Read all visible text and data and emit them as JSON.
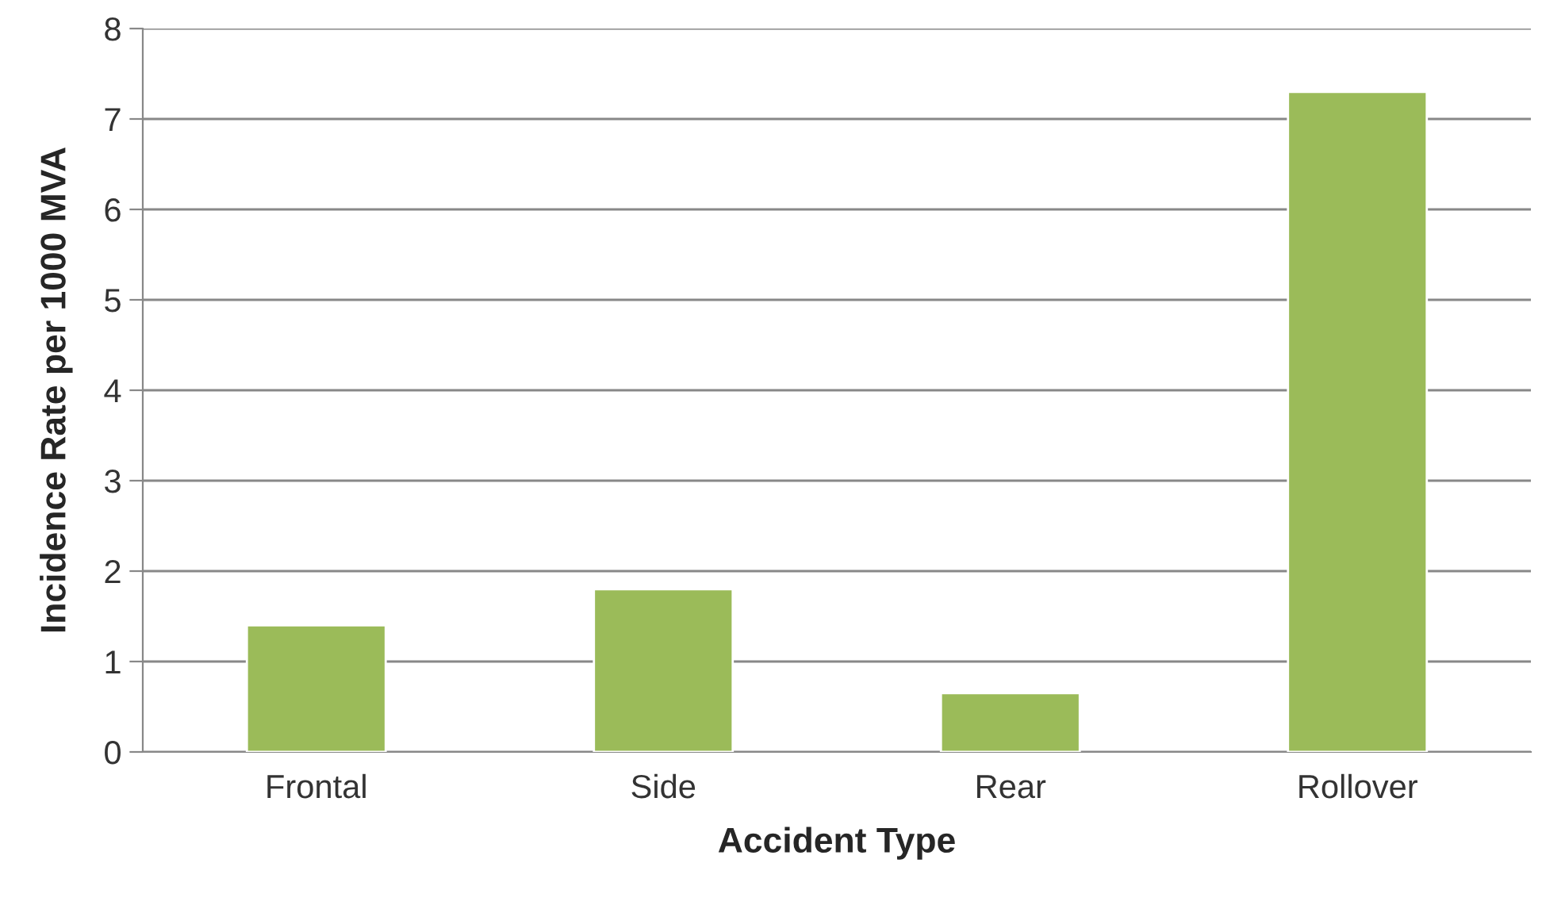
{
  "chart_data": {
    "type": "bar",
    "xlabel": "Accident Type",
    "ylabel": "Incidence Rate per 1000 MVA",
    "categories": [
      "Frontal",
      "Side",
      "Rear",
      "Rollover"
    ],
    "values": [
      1.4,
      1.8,
      0.65,
      7.3
    ],
    "color": "#9bbb59",
    "ylim": [
      0,
      8
    ],
    "yticks": [
      0,
      1,
      2,
      3,
      4,
      5,
      6,
      7,
      8
    ],
    "grid": "y",
    "legend": false
  }
}
